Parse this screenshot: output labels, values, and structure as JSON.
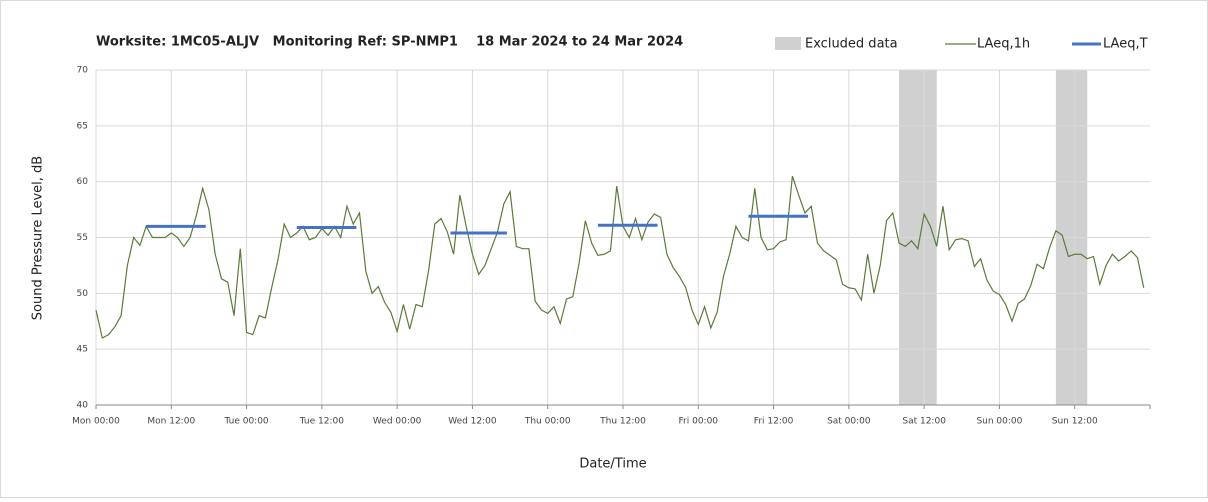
{
  "chart_data": {
    "type": "line",
    "title": "Worksite: 1MC05-ALJV   Monitoring Ref: SP-NMP1    18 Mar 2024 to 24 Mar 2024",
    "y_label": "Sound Pressure Level, dB",
    "x_label": "Date/Time",
    "xlim": [
      0,
      168
    ],
    "ylim": [
      40,
      70
    ],
    "yticks": [
      40,
      45,
      50,
      55,
      60,
      65,
      70
    ],
    "xticks": [
      {
        "value": 0,
        "label": "Mon 00:00"
      },
      {
        "value": 12,
        "label": "Mon 12:00"
      },
      {
        "value": 24,
        "label": "Tue 00:00"
      },
      {
        "value": 36,
        "label": "Tue 12:00"
      },
      {
        "value": 48,
        "label": "Wed 00:00"
      },
      {
        "value": 60,
        "label": "Wed 12:00"
      },
      {
        "value": 72,
        "label": "Thu 00:00"
      },
      {
        "value": 84,
        "label": "Thu 12:00"
      },
      {
        "value": 96,
        "label": "Fri 00:00"
      },
      {
        "value": 108,
        "label": "Fri 12:00"
      },
      {
        "value": 120,
        "label": "Sat 00:00"
      },
      {
        "value": 132,
        "label": "Sat 12:00"
      },
      {
        "value": 144,
        "label": "Sun 00:00"
      },
      {
        "value": 156,
        "label": "Sun 12:00"
      }
    ],
    "grid": true,
    "excluded": {
      "name": "Excluded data",
      "color": "#d0d0d0",
      "ranges": [
        [
          128,
          134
        ],
        [
          153,
          158
        ]
      ]
    },
    "series": [
      {
        "name": "LAeq,1h",
        "color": "#5b7b3c",
        "x": [
          0,
          1,
          2,
          3,
          4,
          5,
          6,
          7,
          8,
          9,
          10,
          11,
          12,
          13,
          14,
          15,
          16,
          17,
          18,
          19,
          20,
          21,
          22,
          23,
          24,
          25,
          26,
          27,
          28,
          29,
          30,
          31,
          32,
          33,
          34,
          35,
          36,
          37,
          38,
          39,
          40,
          41,
          42,
          43,
          44,
          45,
          46,
          47,
          48,
          49,
          50,
          51,
          52,
          53,
          54,
          55,
          56,
          57,
          58,
          59,
          60,
          61,
          62,
          63,
          64,
          65,
          66,
          67,
          68,
          69,
          70,
          71,
          72,
          73,
          74,
          75,
          76,
          77,
          78,
          79,
          80,
          81,
          82,
          83,
          84,
          85,
          86,
          87,
          88,
          89,
          90,
          91,
          92,
          93,
          94,
          95,
          96,
          97,
          98,
          99,
          100,
          101,
          102,
          103,
          104,
          105,
          106,
          107,
          108,
          109,
          110,
          111,
          112,
          113,
          114,
          115,
          116,
          117,
          118,
          119,
          120,
          121,
          122,
          123,
          124,
          125,
          126,
          127,
          128,
          129,
          130,
          131,
          132,
          133,
          134,
          135,
          136,
          137,
          138,
          139,
          140,
          141,
          142,
          143,
          144,
          145,
          146,
          147,
          148,
          149,
          150,
          151,
          152,
          153,
          154,
          155,
          156,
          157,
          158,
          159,
          160,
          161,
          162,
          163,
          164,
          165,
          166,
          167
        ],
        "values": [
          48.5,
          46,
          46.3,
          47,
          48,
          52.5,
          55,
          54.3,
          56,
          55,
          55,
          55,
          55.4,
          55,
          54.2,
          55,
          57,
          59.4,
          57.5,
          53.5,
          51.3,
          51,
          48,
          54,
          46.5,
          46.3,
          48,
          47.8,
          50.5,
          53,
          56.2,
          55,
          55.4,
          56,
          54.8,
          55,
          55.8,
          55.2,
          56,
          55,
          57.8,
          56.2,
          57.2,
          52,
          50,
          50.6,
          49.2,
          48.3,
          46.6,
          49,
          46.8,
          49,
          48.8,
          52,
          56.2,
          56.7,
          55.5,
          53.5,
          58.8,
          56,
          53.5,
          51.7,
          52.5,
          54,
          55.5,
          58,
          59.1,
          54.2,
          54,
          54,
          49.3,
          48.5,
          48.2,
          48.8,
          47.3,
          49.5,
          49.7,
          52.7,
          56.5,
          54.5,
          53.4,
          53.5,
          53.8,
          59.6,
          56,
          55,
          56.7,
          54.8,
          56.4,
          57.1,
          56.8,
          53.5,
          52.3,
          51.5,
          50.5,
          48.5,
          47.2,
          48.8,
          46.9,
          48.3,
          51.5,
          53.5,
          56,
          55,
          54.7,
          59.4,
          55,
          53.9,
          54,
          54.6,
          54.8,
          60.5,
          58.8,
          57.2,
          57.8,
          54.5,
          53.8,
          53.4,
          53,
          50.8,
          50.5,
          50.4,
          49.4,
          53.5,
          50,
          52.5,
          56.5,
          57.2,
          54.5,
          54.2,
          54.7,
          54,
          57.1,
          56,
          54.2,
          57.8,
          53.9,
          54.8,
          54.9,
          54.7,
          52.4,
          53.1,
          51.2,
          50.2,
          49.9,
          49,
          47.5,
          49.1,
          49.5,
          50.7,
          52.6,
          52.2,
          54.1,
          55.6,
          55.2,
          53.3,
          53.5,
          53.5,
          53.1,
          53.3,
          50.8,
          52.5,
          53.5,
          52.9,
          53.3,
          53.8,
          53.2,
          50.5
        ]
      }
    ],
    "leq_t": {
      "name": "LAeq,T",
      "color": "#4472c4",
      "starts": [
        8,
        32,
        56.5,
        80,
        104
      ],
      "ends": [
        17.5,
        41.5,
        65.5,
        89.5,
        113.5
      ],
      "values": [
        56,
        55.9,
        55.4,
        56.1,
        56.9
      ]
    }
  }
}
